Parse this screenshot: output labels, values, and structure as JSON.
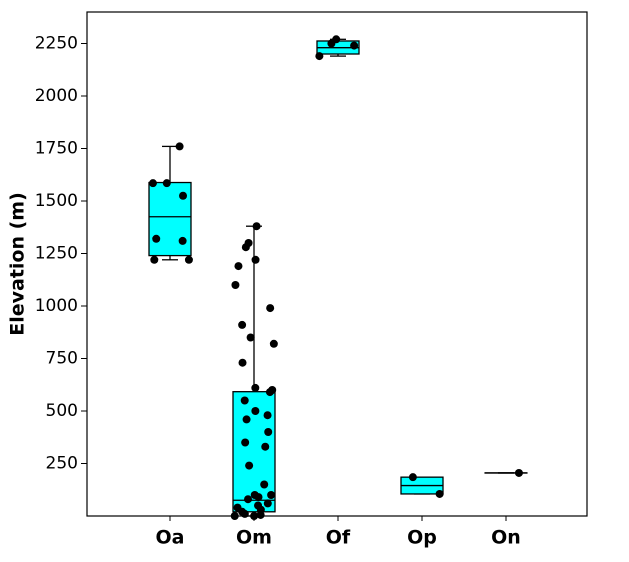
{
  "chart_data": {
    "type": "box",
    "ylabel": "Elevation (m)",
    "categories": [
      "Oa",
      "Om",
      "Of",
      "Op",
      "On"
    ],
    "color": "#00ffff",
    "boxes": [
      {
        "low": 1220,
        "q1": 1240,
        "median": 1425,
        "q3": 1588,
        "high": 1760
      },
      {
        "low": 0,
        "q1": 20,
        "median": 75,
        "q3": 592,
        "high": 1380
      },
      {
        "low": 2190,
        "q1": 2200,
        "median": 2230,
        "q3": 2262,
        "high": 2270
      },
      {
        "low": 105,
        "q1": 105,
        "median": 145,
        "q3": 185,
        "high": 185
      },
      {
        "low": 205,
        "q1": 205,
        "median": 205,
        "q3": 205,
        "high": 205
      }
    ],
    "points": [
      [
        1760,
        1585,
        1585,
        1525,
        1320,
        1310,
        1220,
        1220
      ],
      [
        1380,
        1300,
        1280,
        1220,
        1190,
        1100,
        990,
        910,
        850,
        820,
        730,
        610,
        600,
        590,
        550,
        500,
        480,
        460,
        400,
        350,
        330,
        240,
        150,
        100,
        100,
        90,
        80,
        60,
        50,
        40,
        30,
        20,
        10,
        5,
        0,
        0
      ],
      [
        2270,
        2250,
        2240,
        2190
      ],
      [
        185,
        105
      ],
      [
        205
      ]
    ],
    "ylim": [
      0,
      2400
    ],
    "yticks": [
      250,
      500,
      750,
      1000,
      1250,
      1500,
      1750,
      2000,
      2250
    ]
  }
}
